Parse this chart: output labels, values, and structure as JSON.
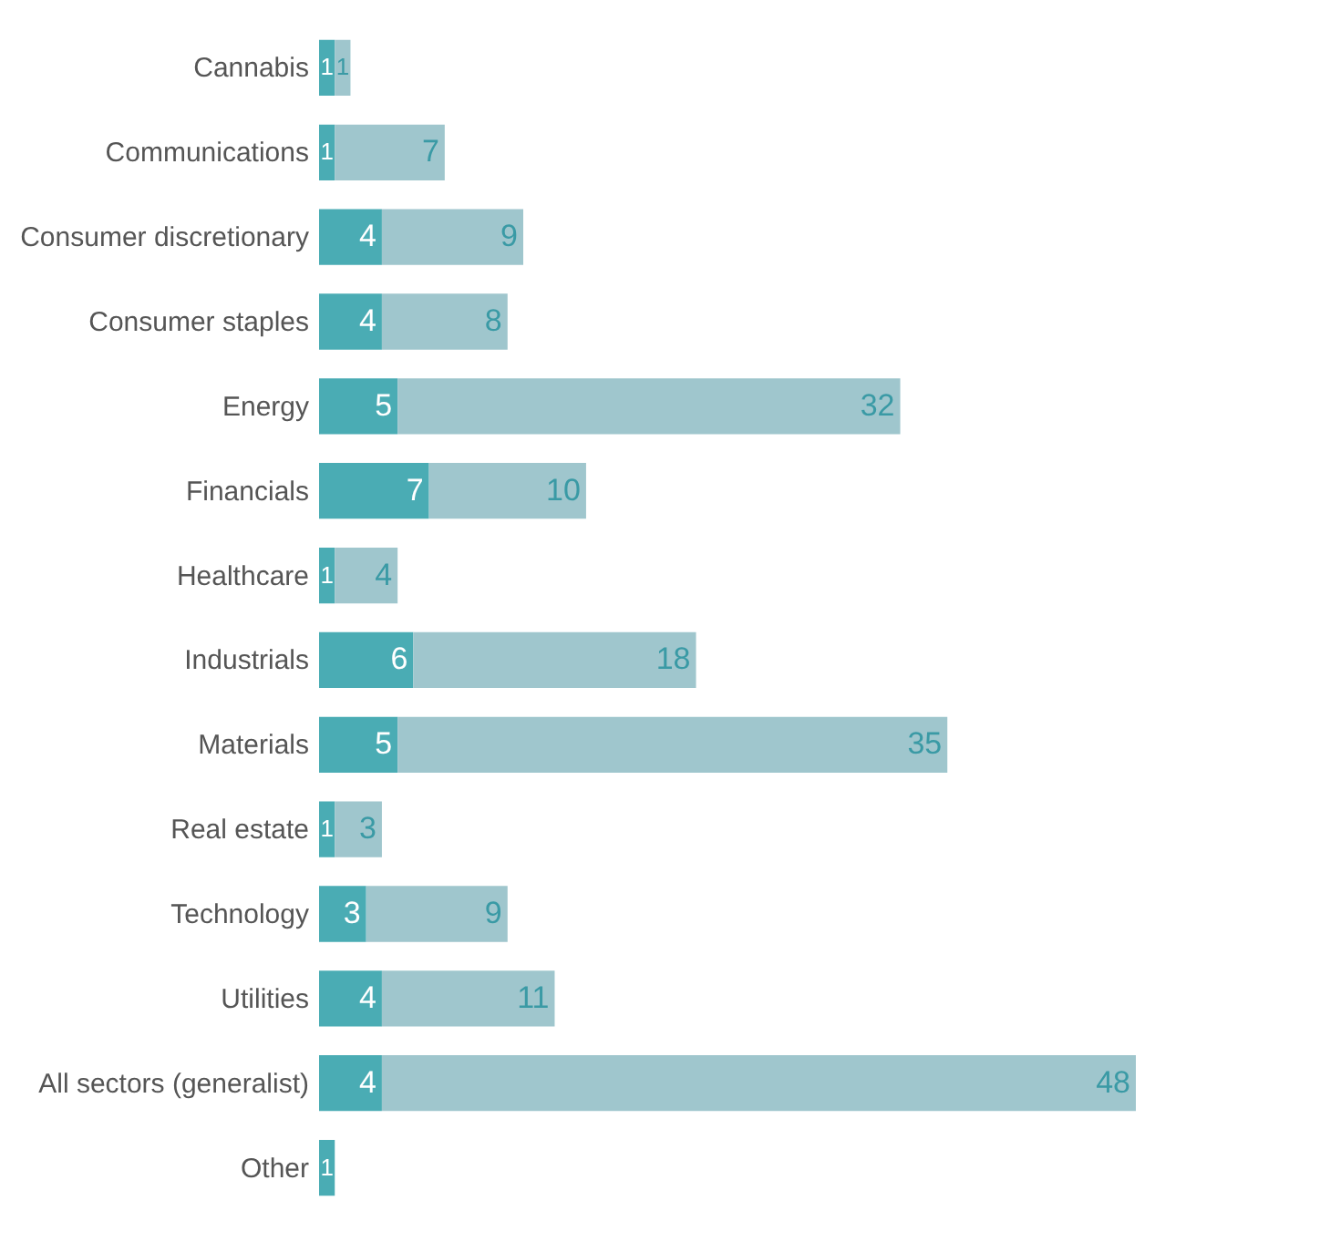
{
  "chart_data": {
    "type": "bar",
    "orientation": "horizontal",
    "stacked": true,
    "data_labels": true,
    "legend": false,
    "tick_labels": "y",
    "categories": [
      "Cannabis",
      "Communications",
      "Consumer discretionary",
      "Consumer staples",
      "Energy",
      "Financials",
      "Healthcare",
      "Industrials",
      "Materials",
      "Real estate",
      "Technology",
      "Utilities",
      "All sectors (generalist)",
      "Other"
    ],
    "series": [
      {
        "color": "#4aacb4",
        "values": [
          1,
          1,
          4,
          4,
          5,
          7,
          1,
          6,
          5,
          1,
          3,
          4,
          4,
          1
        ]
      },
      {
        "color": "#9fc6cd",
        "values": [
          1,
          7,
          9,
          8,
          32,
          10,
          4,
          18,
          35,
          3,
          9,
          11,
          48,
          null
        ]
      }
    ]
  }
}
